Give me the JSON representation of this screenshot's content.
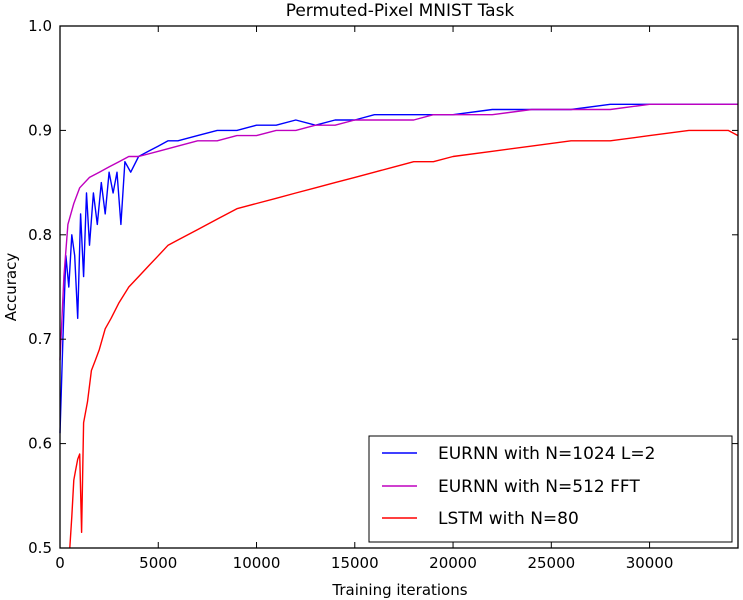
{
  "chart_data": {
    "type": "line",
    "title": "Permuted-Pixel MNIST Task",
    "xlabel": "Training iterations",
    "ylabel": "Accuracy",
    "xlim": [
      0,
      34500
    ],
    "ylim": [
      0.5,
      1.0
    ],
    "xticks": [
      0,
      5000,
      10000,
      15000,
      20000,
      25000,
      30000
    ],
    "yticks": [
      0.5,
      0.6,
      0.7,
      0.8,
      0.9,
      1.0
    ],
    "ytick_labels": [
      "0.5",
      "0.6",
      "0.7",
      "0.8",
      "0.9",
      "1.0"
    ],
    "grid": false,
    "legend_position": "lower-right",
    "series": [
      {
        "name": "EURNN with N=1024 L=2",
        "color": "#0000ff",
        "points": [
          [
            0,
            0.61
          ],
          [
            150,
            0.7
          ],
          [
            300,
            0.78
          ],
          [
            450,
            0.75
          ],
          [
            600,
            0.8
          ],
          [
            750,
            0.78
          ],
          [
            900,
            0.72
          ],
          [
            1050,
            0.82
          ],
          [
            1200,
            0.76
          ],
          [
            1350,
            0.84
          ],
          [
            1500,
            0.79
          ],
          [
            1700,
            0.84
          ],
          [
            1900,
            0.81
          ],
          [
            2100,
            0.85
          ],
          [
            2300,
            0.82
          ],
          [
            2500,
            0.86
          ],
          [
            2700,
            0.84
          ],
          [
            2900,
            0.86
          ],
          [
            3100,
            0.81
          ],
          [
            3300,
            0.87
          ],
          [
            3600,
            0.86
          ],
          [
            4000,
            0.875
          ],
          [
            4500,
            0.88
          ],
          [
            5000,
            0.885
          ],
          [
            5500,
            0.89
          ],
          [
            6000,
            0.89
          ],
          [
            7000,
            0.895
          ],
          [
            8000,
            0.9
          ],
          [
            9000,
            0.9
          ],
          [
            10000,
            0.905
          ],
          [
            11000,
            0.905
          ],
          [
            12000,
            0.91
          ],
          [
            13000,
            0.905
          ],
          [
            14000,
            0.91
          ],
          [
            15000,
            0.91
          ],
          [
            16000,
            0.915
          ],
          [
            17000,
            0.915
          ],
          [
            18000,
            0.915
          ],
          [
            19000,
            0.915
          ],
          [
            20000,
            0.915
          ],
          [
            22000,
            0.92
          ],
          [
            24000,
            0.92
          ],
          [
            26000,
            0.92
          ],
          [
            28000,
            0.925
          ],
          [
            30000,
            0.925
          ],
          [
            32000,
            0.925
          ],
          [
            34000,
            0.925
          ],
          [
            34500,
            0.925
          ]
        ]
      },
      {
        "name": "EURNN with N=512 FFT",
        "color": "#bf00bf",
        "points": [
          [
            0,
            0.68
          ],
          [
            200,
            0.76
          ],
          [
            400,
            0.81
          ],
          [
            700,
            0.83
          ],
          [
            1000,
            0.845
          ],
          [
            1500,
            0.855
          ],
          [
            2000,
            0.86
          ],
          [
            2500,
            0.865
          ],
          [
            3000,
            0.87
          ],
          [
            3500,
            0.875
          ],
          [
            4000,
            0.875
          ],
          [
            5000,
            0.88
          ],
          [
            6000,
            0.885
          ],
          [
            7000,
            0.89
          ],
          [
            8000,
            0.89
          ],
          [
            9000,
            0.895
          ],
          [
            10000,
            0.895
          ],
          [
            11000,
            0.9
          ],
          [
            12000,
            0.9
          ],
          [
            13000,
            0.905
          ],
          [
            14000,
            0.905
          ],
          [
            15000,
            0.91
          ],
          [
            16000,
            0.91
          ],
          [
            17000,
            0.91
          ],
          [
            18000,
            0.91
          ],
          [
            19000,
            0.915
          ],
          [
            20000,
            0.915
          ],
          [
            22000,
            0.915
          ],
          [
            24000,
            0.92
          ],
          [
            26000,
            0.92
          ],
          [
            28000,
            0.92
          ],
          [
            30000,
            0.925
          ],
          [
            32000,
            0.925
          ],
          [
            34000,
            0.925
          ],
          [
            34500,
            0.925
          ]
        ]
      },
      {
        "name": "LSTM with N=80",
        "color": "#ff0000",
        "points": [
          [
            500,
            0.5
          ],
          [
            600,
            0.53
          ],
          [
            700,
            0.565
          ],
          [
            800,
            0.575
          ],
          [
            900,
            0.585
          ],
          [
            1000,
            0.59
          ],
          [
            1100,
            0.515
          ],
          [
            1200,
            0.62
          ],
          [
            1400,
            0.64
          ],
          [
            1600,
            0.67
          ],
          [
            1800,
            0.68
          ],
          [
            2000,
            0.69
          ],
          [
            2300,
            0.71
          ],
          [
            2600,
            0.72
          ],
          [
            3000,
            0.735
          ],
          [
            3500,
            0.75
          ],
          [
            4000,
            0.76
          ],
          [
            4500,
            0.77
          ],
          [
            5000,
            0.78
          ],
          [
            5500,
            0.79
          ],
          [
            6000,
            0.795
          ],
          [
            7000,
            0.805
          ],
          [
            8000,
            0.815
          ],
          [
            9000,
            0.825
          ],
          [
            10000,
            0.83
          ],
          [
            11000,
            0.835
          ],
          [
            12000,
            0.84
          ],
          [
            13000,
            0.845
          ],
          [
            14000,
            0.85
          ],
          [
            15000,
            0.855
          ],
          [
            16000,
            0.86
          ],
          [
            17000,
            0.865
          ],
          [
            18000,
            0.87
          ],
          [
            19000,
            0.87
          ],
          [
            20000,
            0.875
          ],
          [
            22000,
            0.88
          ],
          [
            24000,
            0.885
          ],
          [
            26000,
            0.89
          ],
          [
            28000,
            0.89
          ],
          [
            30000,
            0.895
          ],
          [
            32000,
            0.9
          ],
          [
            34000,
            0.9
          ],
          [
            34500,
            0.895
          ]
        ]
      }
    ]
  }
}
